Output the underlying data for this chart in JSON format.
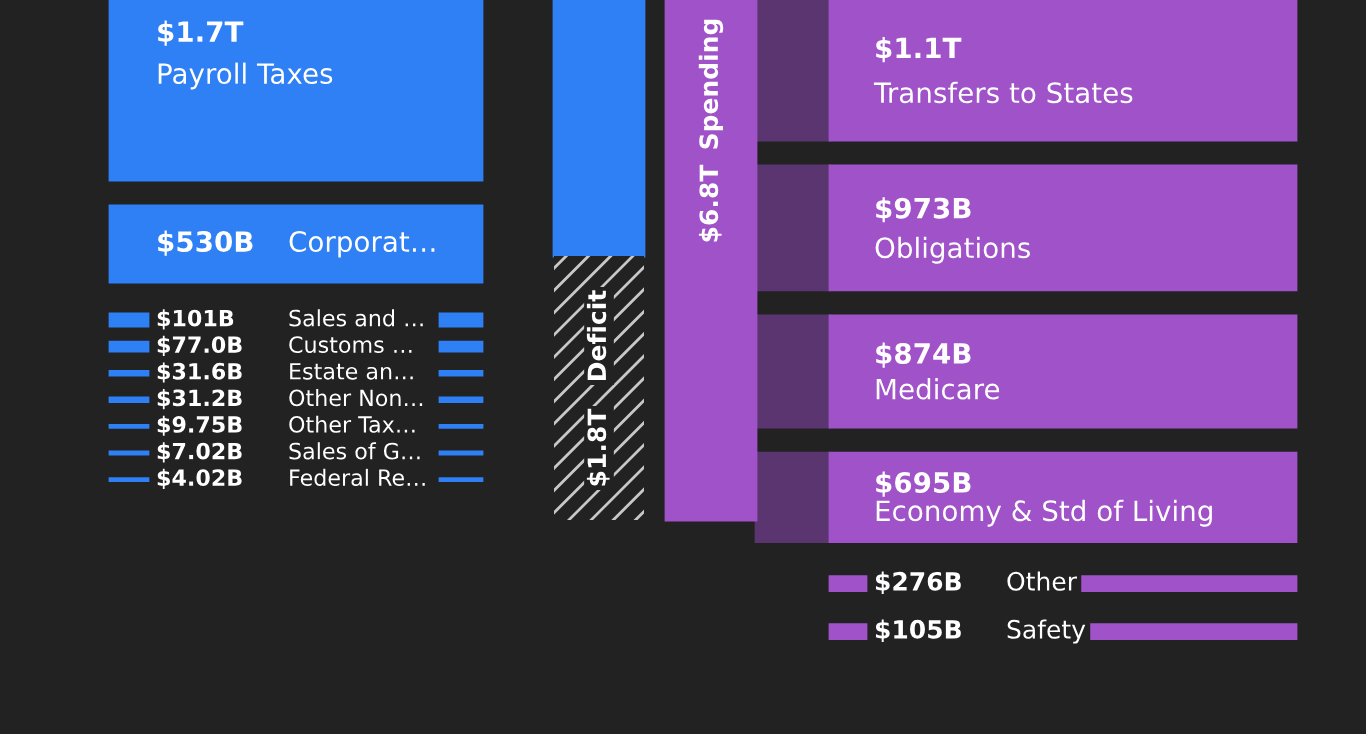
{
  "chart_data": {
    "type": "other",
    "categories": [
      "Payroll Taxes",
      "Corporat…",
      "Sales and …",
      "Customs …",
      "Estate an…",
      "Other Non…",
      "Other Tax…",
      "Sales of G…",
      "Federal Re…",
      "Deficit",
      "Spending",
      "Transfers to States",
      "Obligations",
      "Medicare",
      "Economy & Std of Living",
      "Other",
      "Safety"
    ],
    "series": [
      {
        "color": "#2f7ff5",
        "values": [
          1700000000000,
          530000000000,
          101000000000,
          77000000000,
          31600000000,
          31200000000,
          9750000000,
          7020000000,
          4020000000,
          null,
          null,
          null,
          null,
          null,
          null,
          null,
          null
        ],
        "value_labels": [
          "$1.7T",
          "$530B",
          "$101B",
          "$77.0B",
          "$31.6B",
          "$31.2B",
          "$9.75B",
          "$7.02B",
          "$4.02B",
          null,
          null,
          null,
          null,
          null,
          null,
          null,
          null
        ]
      },
      {
        "color": "#222222",
        "values": [
          null,
          null,
          null,
          null,
          null,
          null,
          null,
          null,
          null,
          1800000000000,
          null,
          null,
          null,
          null,
          null,
          null,
          null
        ],
        "value_labels": [
          null,
          null,
          null,
          null,
          null,
          null,
          null,
          null,
          null,
          "$1.8T",
          null,
          null,
          null,
          null,
          null,
          null,
          null
        ]
      },
      {
        "color": "#a052c8",
        "values": [
          null,
          null,
          null,
          null,
          null,
          null,
          null,
          null,
          null,
          null,
          6800000000000,
          null,
          null,
          null,
          null,
          null,
          null
        ],
        "value_labels": [
          null,
          null,
          null,
          null,
          null,
          null,
          null,
          null,
          null,
          null,
          "$6.8T",
          null,
          null,
          null,
          null,
          null,
          null
        ]
      },
      {
        "color": "#a052c8",
        "values": [
          null,
          null,
          null,
          null,
          null,
          null,
          null,
          null,
          null,
          null,
          null,
          1100000000000,
          973000000000,
          874000000000,
          695000000000,
          276000000000,
          105000000000
        ],
        "value_labels": [
          null,
          null,
          null,
          null,
          null,
          null,
          null,
          null,
          null,
          null,
          null,
          "$1.1T",
          "$973B",
          "$874B",
          "$695B",
          "$276B",
          "$105B"
        ]
      }
    ]
  }
}
